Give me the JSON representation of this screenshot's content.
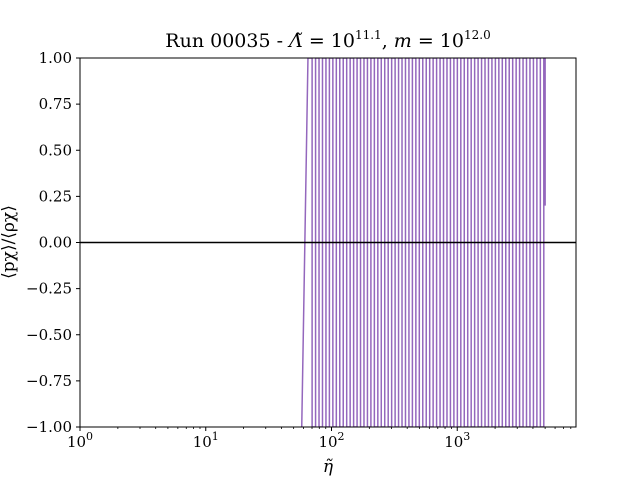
{
  "chart_data": {
    "type": "line",
    "title": "Run 00035 - Λ̃ = 10^11.1, m = 10^12.0",
    "title_parts": {
      "prefix": "Run 00035 - ",
      "lambda_symbol": "Λ̃",
      "eq1": " = 10",
      "lambda_exp": "11.1",
      "sep": ", ",
      "m_symbol": "m",
      "eq2": " = 10",
      "m_exp": "12.0"
    },
    "xlabel": "η̃",
    "ylabel": "⟨pχ⟩/⟨ρχ⟩",
    "x_scale": "log",
    "xlim": [
      1,
      8800
    ],
    "ylim": [
      -1.0,
      1.0
    ],
    "x_ticks": [
      {
        "value": 1,
        "base": "10",
        "exp": "0"
      },
      {
        "value": 10,
        "base": "10",
        "exp": "1"
      },
      {
        "value": 100,
        "base": "10",
        "exp": "2"
      },
      {
        "value": 1000,
        "base": "10",
        "exp": "3"
      }
    ],
    "y_ticks": [
      "−1.00",
      "−0.75",
      "−0.50",
      "−0.25",
      "0.00",
      "0.25",
      "0.50",
      "0.75",
      "1.00"
    ],
    "y_tick_values": [
      -1.0,
      -0.75,
      -0.5,
      -0.25,
      0.0,
      0.25,
      0.5,
      0.75,
      1.0
    ],
    "grid": false,
    "legend": "none",
    "series": [
      {
        "color": "#9467bd",
        "x_start": 58,
        "x_first_rise_end": 65,
        "x_end": 5000,
        "y_end": 0.2,
        "oscillation_between": [
          -1.0,
          1.0
        ],
        "period_log10": 0.055
      }
    ],
    "horizontal_lines": [
      {
        "y": 0.0,
        "color": "#000000"
      }
    ]
  }
}
